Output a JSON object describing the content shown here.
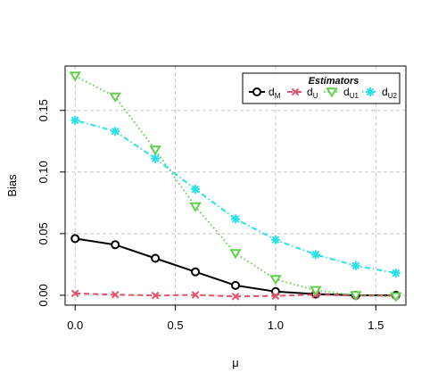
{
  "chart_data": {
    "type": "line",
    "title": "",
    "xlabel": "μ",
    "ylabel": "Bias",
    "xlim": [
      -0.05,
      1.65
    ],
    "ylim": [
      -0.008,
      0.186
    ],
    "xticks": [
      0.0,
      0.5,
      1.0,
      1.5
    ],
    "xtick_labels": [
      "0.0",
      "0.5",
      "1.0",
      "1.5"
    ],
    "yticks": [
      0.0,
      0.05,
      0.1,
      0.15
    ],
    "ytick_labels": [
      "0.00",
      "0.05",
      "0.10",
      "0.15"
    ],
    "grid": true,
    "legend": {
      "title": "Estimators",
      "position": "top-right"
    },
    "x": [
      0.0,
      0.2,
      0.4,
      0.6,
      0.8,
      1.0,
      1.2,
      1.4,
      1.6
    ],
    "series": [
      {
        "name": "dM",
        "label_main": "d",
        "label_sub": "M",
        "marker": "circle",
        "line_style": "solid",
        "color": "#000000",
        "values": [
          0.046,
          0.041,
          0.03,
          0.019,
          0.008,
          0.003,
          0.001,
          0.0,
          0.0
        ]
      },
      {
        "name": "dU",
        "label_main": "d",
        "label_sub": "U",
        "marker": "x",
        "line_style": "dashed",
        "color": "#DF536B",
        "values": [
          0.0015,
          0.0005,
          -0.0002,
          0.0003,
          -0.001,
          -0.0005,
          0.0005,
          -0.0003,
          -0.0002
        ]
      },
      {
        "name": "dU1",
        "label_main": "d",
        "label_sub": "U1",
        "marker": "triangle-down",
        "line_style": "dotted",
        "color": "#61D04F",
        "values": [
          0.178,
          0.161,
          0.118,
          0.072,
          0.034,
          0.013,
          0.004,
          0.0,
          -0.001
        ]
      },
      {
        "name": "dU2",
        "label_main": "d",
        "label_sub": "U2",
        "marker": "asterisk",
        "line_style": "dotdash",
        "color": "#28E2E5",
        "values": [
          0.142,
          0.133,
          0.111,
          0.086,
          0.062,
          0.045,
          0.033,
          0.024,
          0.018
        ]
      }
    ]
  }
}
